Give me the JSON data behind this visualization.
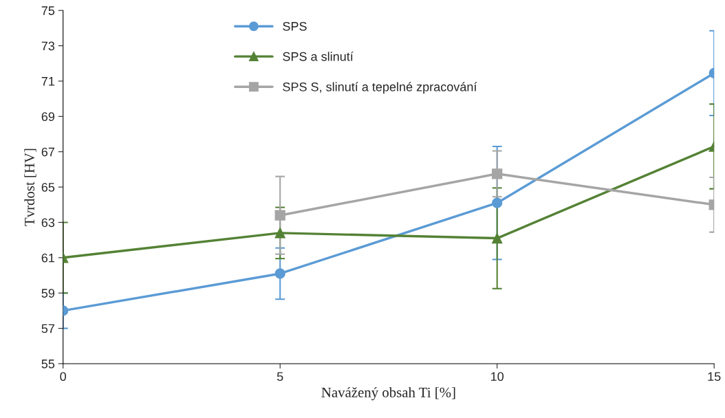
{
  "chart_data": {
    "type": "line",
    "xlabel": "Navážený obsah Ti [%]",
    "ylabel": "Tvrdost [HV]",
    "x": [
      0,
      5,
      10,
      15
    ],
    "xlim": [
      0,
      15
    ],
    "xticks": [
      0,
      5,
      10,
      15
    ],
    "ylim": [
      55,
      75
    ],
    "yticks": [
      55,
      57,
      59,
      61,
      63,
      65,
      67,
      69,
      71,
      73,
      75
    ],
    "grid": false,
    "legend": "top",
    "line_style": "solid",
    "series": [
      {
        "name": "SPS",
        "color": "#5b9bd5",
        "marker": "circle",
        "values": [
          58,
          60.1,
          64.1,
          71.45
        ],
        "errors": [
          1,
          1.45,
          3.2,
          2.4
        ]
      },
      {
        "name": "SPS a slinutí",
        "color": "#548235",
        "marker": "triangle",
        "values": [
          61,
          62.4,
          62.1,
          67.3
        ],
        "errors": [
          2,
          1.45,
          2.85,
          2.4
        ]
      },
      {
        "name": "SPS S, slinutí a tepelné zpracování",
        "color": "#a5a5a5",
        "marker": "square",
        "values": [
          null,
          63.4,
          65.75,
          64.0
        ],
        "errors": [
          null,
          2.2,
          1.3,
          1.55
        ]
      }
    ]
  }
}
